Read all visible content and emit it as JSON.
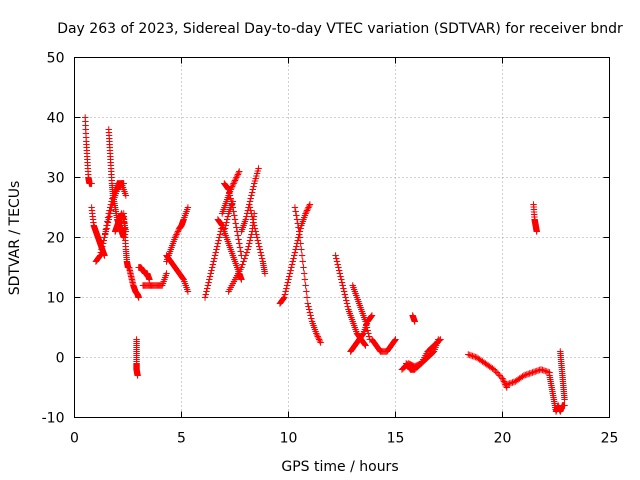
{
  "chart_data": {
    "type": "scatter",
    "title": "Day 263 of 2023, Sidereal Day-to-day VTEC variation (SDTVAR) for receiver bndr",
    "xlabel": "GPS time / hours",
    "ylabel": "SDTVAR / TECUs",
    "xlim": [
      0,
      25
    ],
    "ylim": [
      -10,
      50
    ],
    "xticks": [
      "0",
      "5",
      "10",
      "15",
      "20",
      "25"
    ],
    "yticks": [
      "-10",
      "0",
      "10",
      "20",
      "30",
      "40",
      "50"
    ],
    "grid": true,
    "marker": "+",
    "color": "#ff0000",
    "segments": [
      {
        "x": [
          0.5,
          0.55,
          0.6,
          0.65,
          0.7,
          0.8
        ],
        "y": [
          40,
          36,
          33,
          30,
          29,
          29
        ]
      },
      {
        "x": [
          0.8,
          0.9,
          1.0,
          1.1,
          1.2,
          1.3,
          1.4
        ],
        "y": [
          25,
          22,
          21,
          20,
          19,
          18,
          17
        ]
      },
      {
        "x": [
          1.0,
          1.2,
          1.4,
          1.6,
          1.8,
          2.0,
          2.2,
          2.3
        ],
        "y": [
          16,
          17,
          20,
          23,
          26,
          28,
          29,
          29
        ]
      },
      {
        "x": [
          1.2,
          1.4,
          1.6,
          1.8,
          2.0,
          2.2,
          2.4
        ],
        "y": [
          17,
          20,
          24,
          27,
          29,
          29,
          27
        ]
      },
      {
        "x": [
          1.6,
          1.65,
          1.7,
          1.75,
          1.8,
          1.9,
          2.0,
          2.1,
          2.2,
          2.3
        ],
        "y": [
          38,
          35,
          32,
          29,
          27,
          25,
          23,
          22,
          21,
          20
        ]
      },
      {
        "x": [
          1.9,
          2.0,
          2.1,
          2.2,
          2.3,
          2.4
        ],
        "y": [
          21,
          22,
          23,
          24,
          23,
          21
        ]
      },
      {
        "x": [
          2.3,
          2.35,
          2.4,
          2.45,
          2.5,
          2.55
        ],
        "y": [
          24,
          21,
          18,
          16,
          15,
          15
        ]
      },
      {
        "x": [
          2.55,
          2.65,
          2.75,
          2.85,
          2.95,
          3.0
        ],
        "y": [
          15,
          13.5,
          12,
          11,
          10.5,
          10
        ]
      },
      {
        "x": [
          2.9,
          2.9,
          2.9,
          2.9,
          2.95
        ],
        "y": [
          3,
          1,
          -1,
          -2,
          -3
        ]
      },
      {
        "x": [
          3.0,
          3.1,
          3.2,
          3.3,
          3.4,
          3.5
        ],
        "y": [
          15,
          15,
          14.5,
          14,
          14,
          13
        ]
      },
      {
        "x": [
          3.2,
          3.5,
          3.8,
          4.1,
          4.3
        ],
        "y": [
          12,
          12,
          12,
          12,
          14
        ]
      },
      {
        "x": [
          4.3,
          4.5,
          4.7,
          4.9,
          5.0,
          5.1,
          5.3
        ],
        "y": [
          16,
          18,
          20,
          21.5,
          22,
          23,
          25
        ]
      },
      {
        "x": [
          4.3,
          4.5,
          4.7,
          4.9,
          5.1,
          5.3
        ],
        "y": [
          17,
          16,
          15,
          14,
          13,
          11
        ]
      },
      {
        "x": [
          6.1,
          6.3,
          6.5,
          6.7,
          6.9
        ],
        "y": [
          10,
          13,
          16,
          19,
          22
        ]
      },
      {
        "x": [
          6.7,
          6.9,
          7.1,
          7.3,
          7.5,
          7.7,
          7.8
        ],
        "y": [
          23,
          22,
          20,
          18,
          16,
          14,
          13
        ]
      },
      {
        "x": [
          6.9,
          7.1,
          7.3,
          7.5,
          7.7
        ],
        "y": [
          24,
          26,
          28,
          29.5,
          31
        ]
      },
      {
        "x": [
          7.0,
          7.2,
          7.4,
          7.6,
          7.8
        ],
        "y": [
          29,
          28,
          25,
          21,
          17
        ]
      },
      {
        "x": [
          7.0,
          7.2,
          7.4
        ],
        "y": [
          21,
          24,
          26
        ]
      },
      {
        "x": [
          7.2,
          7.5,
          7.8,
          8.1,
          8.3,
          8.4
        ],
        "y": [
          11,
          13,
          15,
          18,
          21,
          24
        ]
      },
      {
        "x": [
          7.8,
          8.0,
          8.2,
          8.4,
          8.6
        ],
        "y": [
          21,
          23,
          26,
          29,
          31.5
        ]
      },
      {
        "x": [
          8.2,
          8.4,
          8.6,
          8.8,
          8.9
        ],
        "y": [
          25,
          22,
          19,
          16,
          14
        ]
      },
      {
        "x": [
          9.6,
          9.8,
          10.0,
          10.2,
          10.4,
          10.6,
          10.8,
          11.0
        ],
        "y": [
          9,
          10,
          13,
          16,
          19,
          22,
          24,
          25.5
        ]
      },
      {
        "x": [
          10.3,
          10.5,
          10.7,
          10.9,
          11.1,
          11.3,
          11.5
        ],
        "y": [
          25,
          21,
          15,
          9,
          6,
          4,
          2.5
        ]
      },
      {
        "x": [
          12.2,
          12.4,
          12.6,
          12.8,
          13.0,
          13.2,
          13.4,
          13.6
        ],
        "y": [
          17,
          14,
          11,
          8,
          6,
          4,
          3,
          2
        ]
      },
      {
        "x": [
          13.0,
          13.2,
          13.4,
          13.6,
          13.8
        ],
        "y": [
          12,
          10,
          8,
          6,
          3
        ]
      },
      {
        "x": [
          12.9,
          13.1,
          13.3,
          13.5,
          13.7,
          13.9
        ],
        "y": [
          1,
          2,
          3,
          4,
          6,
          7
        ]
      },
      {
        "x": [
          13.9,
          14.1,
          14.3,
          14.6,
          14.8,
          15.0
        ],
        "y": [
          3,
          2,
          1,
          1,
          2,
          3
        ]
      },
      {
        "x": [
          15.3,
          15.6,
          15.9,
          16.2,
          16.5,
          16.8,
          17.0
        ],
        "y": [
          -2,
          -1,
          -1.5,
          -1,
          0,
          1,
          3
        ]
      },
      {
        "x": [
          15.5,
          15.7,
          15.9,
          16.2,
          16.5,
          16.8,
          17.1
        ],
        "y": [
          -1,
          -2,
          -2,
          -1,
          1,
          2,
          3
        ]
      },
      {
        "x": [
          15.8,
          15.9
        ],
        "y": [
          7,
          6
        ]
      },
      {
        "x": [
          18.4,
          18.8,
          19.2,
          19.6,
          20.0,
          20.2
        ],
        "y": [
          0.5,
          0,
          -1,
          -2,
          -3.5,
          -5
        ]
      },
      {
        "x": [
          20.2,
          20.6,
          21.0,
          21.4,
          21.8,
          22.2
        ],
        "y": [
          -4.5,
          -4,
          -3,
          -2.5,
          -2,
          -2.5
        ]
      },
      {
        "x": [
          21.45,
          21.5,
          21.55,
          21.6
        ],
        "y": [
          25.5,
          23,
          22,
          21
        ]
      },
      {
        "x": [
          22.2,
          22.3,
          22.4,
          22.5,
          22.6,
          22.7,
          22.8,
          22.9
        ],
        "y": [
          -3,
          -5,
          -7,
          -9,
          -8,
          -9,
          -8,
          -8
        ]
      },
      {
        "x": [
          22.7,
          22.75,
          22.8,
          22.85,
          22.9
        ],
        "y": [
          1,
          -1,
          -3,
          -5,
          -7
        ]
      }
    ]
  }
}
